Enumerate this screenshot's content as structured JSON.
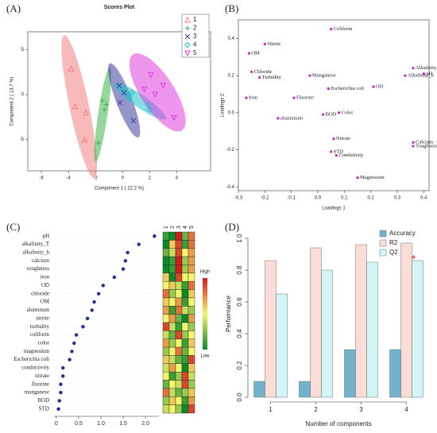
{
  "chart_data": [
    {
      "type": "scatter",
      "panel_label": "(A)",
      "title": "Scores Plot",
      "x_label": "Component 1 ( 22.2 %)",
      "y_label": "Component 2 ( 13.7 %)",
      "xlim": [
        -7,
        6.5
      ],
      "ylim": [
        -8.5,
        7
      ],
      "xticks": [
        -6,
        -4,
        -2,
        0,
        2,
        4
      ],
      "yticks": [
        -5,
        0,
        5
      ],
      "series": [
        {
          "name": "1",
          "color": "#f08080",
          "marker": "triangle",
          "x": [
            -3.8,
            -3.5,
            -2.7,
            -2.8
          ],
          "y": [
            2.9,
            -1.3,
            -2.0,
            -5.0
          ]
        },
        {
          "name": "2",
          "color": "#3cb44b",
          "marker": "plus",
          "x": [
            -1.5,
            -1.2,
            -1.35,
            -1.8
          ],
          "y": [
            -0.7,
            -1.1,
            -1.7,
            -5.4
          ]
        },
        {
          "name": "3",
          "color": "#4040a0",
          "marker": "cross",
          "x": [
            -0.25,
            0.1,
            0.8,
            -0.2
          ],
          "y": [
            1.0,
            0.2,
            -2.9,
            -0.9
          ]
        },
        {
          "name": "4",
          "color": "#20c0c8",
          "marker": "diamond",
          "x": [
            0.7,
            0.5,
            2.0,
            1.9
          ],
          "y": [
            0.2,
            -0.3,
            -1.7,
            -1.1
          ]
        },
        {
          "name": "5",
          "color": "#e040e0",
          "marker": "invtriangle",
          "x": [
            2.1,
            1.6,
            3.0,
            3.8,
            2.4
          ],
          "y": [
            2.2,
            0.6,
            1.0,
            -2.6,
            0.0
          ]
        }
      ]
    },
    {
      "type": "scatter",
      "panel_label": "(B)",
      "x_label": "Loadings 1",
      "y_label": "Loadings 2",
      "color": "#d020c0",
      "xlim": [
        -0.3,
        0.42
      ],
      "ylim": [
        -0.42,
        0.5
      ],
      "xticks": [
        -0.3,
        -0.2,
        -0.1,
        {
          "value": 0,
          "label": "0.0"
        },
        0.1,
        0.2,
        0.3,
        0.4
      ],
      "yticks": [
        -0.4,
        -0.2,
        {
          "value": 0,
          "label": "0.0"
        },
        0.2,
        0.4
      ],
      "labels": [
        "Coliform",
        "Nitrite",
        "OM",
        "Chloride",
        "Turbidity",
        "Manganese",
        "Alkalinity_T",
        "pH",
        "Alkalinity_h",
        "Iron",
        "Fluorine",
        "Escherichia coli",
        "OD",
        "aluminium",
        "BOD",
        "Color",
        "Nitrate",
        "Calcium",
        "Toughness",
        "STD",
        "Condutivity",
        "Magnesium"
      ],
      "x": [
        0.05,
        -0.2,
        -0.26,
        -0.25,
        -0.22,
        -0.03,
        0.36,
        0.4,
        0.33,
        -0.27,
        -0.09,
        0.04,
        0.21,
        -0.15,
        0.02,
        0.08,
        0.06,
        0.36,
        0.36,
        0.05,
        0.07,
        0.15
      ],
      "y": [
        0.45,
        0.37,
        0.32,
        0.22,
        0.19,
        0.2,
        0.24,
        0.21,
        0.2,
        0.08,
        0.08,
        0.13,
        0.14,
        -0.03,
        -0.01,
        0,
        -0.14,
        -0.16,
        -0.18,
        -0.21,
        -0.23,
        -0.35
      ]
    },
    {
      "type": "dot",
      "panel_label": "(C)",
      "color": "#1c2f9c",
      "xlim": [
        -0.05,
        2.3
      ],
      "xticks": [
        0,
        0.5,
        {
          "value": 1,
          "label": "1.0"
        },
        1.5,
        {
          "value": 2,
          "label": "2.0"
        }
      ],
      "categories": [
        "pH",
        "alkalinity_T",
        "alkalinity_h",
        "calcium",
        "toughness",
        "iron",
        "OD",
        "chloride",
        "OM",
        "aluminum",
        "nitrite",
        "turbidity",
        "coliform",
        "color",
        "magnesium",
        "Escherichia coli",
        "conductivity",
        "nitrate",
        "fluorine",
        "manganese",
        "BOD",
        "STD"
      ],
      "values": [
        2.2,
        1.85,
        1.6,
        1.55,
        1.5,
        1.3,
        1.05,
        0.95,
        0.85,
        0.8,
        0.7,
        0.6,
        0.45,
        0.4,
        0.35,
        0.3,
        0.15,
        0.15,
        0.1,
        0.1,
        0.07,
        0.05
      ],
      "heatmap_columns": [
        "1",
        "2",
        "3",
        "4",
        "5"
      ],
      "heatmap": [
        [
          0.1,
          0.0,
          1.0,
          0.2,
          0.8
        ],
        [
          0.0,
          0.6,
          0.9,
          0.1,
          0.8
        ],
        [
          0.2,
          0.4,
          0.9,
          0.5,
          0.7
        ],
        [
          0.0,
          0.1,
          1.0,
          0.3,
          0.7
        ],
        [
          0.0,
          0.1,
          1.0,
          0.3,
          0.7
        ],
        [
          0.6,
          0.0,
          0.9,
          0.5,
          0.5
        ],
        [
          0.5,
          0.6,
          0.4,
          0.1,
          0.8
        ],
        [
          0.8,
          0.3,
          0.5,
          0.0,
          0.6
        ],
        [
          0.6,
          0.5,
          0.7,
          0.1,
          0.5
        ],
        [
          0.7,
          0.1,
          0.8,
          0.4,
          0.3
        ],
        [
          0.5,
          0.7,
          0.2,
          0.0,
          0.7
        ],
        [
          0.9,
          0.4,
          0.1,
          0.5,
          0.3
        ],
        [
          0.4,
          0.2,
          0.9,
          0.3,
          0.5
        ],
        [
          0.7,
          0.3,
          0.5,
          0.1,
          0.6
        ],
        [
          0.3,
          0.5,
          0.8,
          0.2,
          0.5
        ],
        [
          0.6,
          0.4,
          0.2,
          0.1,
          0.9
        ],
        [
          0.4,
          0.7,
          0.5,
          0.0,
          0.6
        ],
        [
          0.5,
          0.1,
          0.3,
          0.9,
          0.4
        ],
        [
          0.2,
          0.5,
          0.4,
          0.9,
          0.3
        ],
        [
          0.8,
          0.4,
          0.2,
          0.3,
          0.6
        ],
        [
          0.3,
          0.6,
          0.5,
          0.1,
          0.7
        ],
        [
          0.4,
          0.5,
          0.3,
          0.0,
          0.9
        ]
      ],
      "colorbar_labels": [
        "High",
        "Low"
      ]
    },
    {
      "type": "bar",
      "panel_label": "(D)",
      "x_label": "Number of components",
      "y_label": "Performance",
      "categories": [
        "1",
        "2",
        "3",
        "4"
      ],
      "ylim": [
        0,
        1.05
      ],
      "yticks": [
        {
          "value": 0,
          "label": "0.0"
        },
        0.2,
        0.4,
        0.6,
        0.8,
        {
          "value": 1,
          "label": "1.0"
        }
      ],
      "series": [
        {
          "name": "Accuracy",
          "color": "#72b2cc",
          "values": [
            0.1,
            0.1,
            0.3,
            0.3
          ]
        },
        {
          "name": "R2",
          "color": "#fbdcd6",
          "values": [
            0.86,
            0.94,
            0.96,
            0.97
          ]
        },
        {
          "name": "Q2",
          "color": "#d2f6f6",
          "values": [
            0.65,
            0.8,
            0.85,
            0.86
          ]
        }
      ],
      "annotations": [
        "*"
      ]
    }
  ]
}
